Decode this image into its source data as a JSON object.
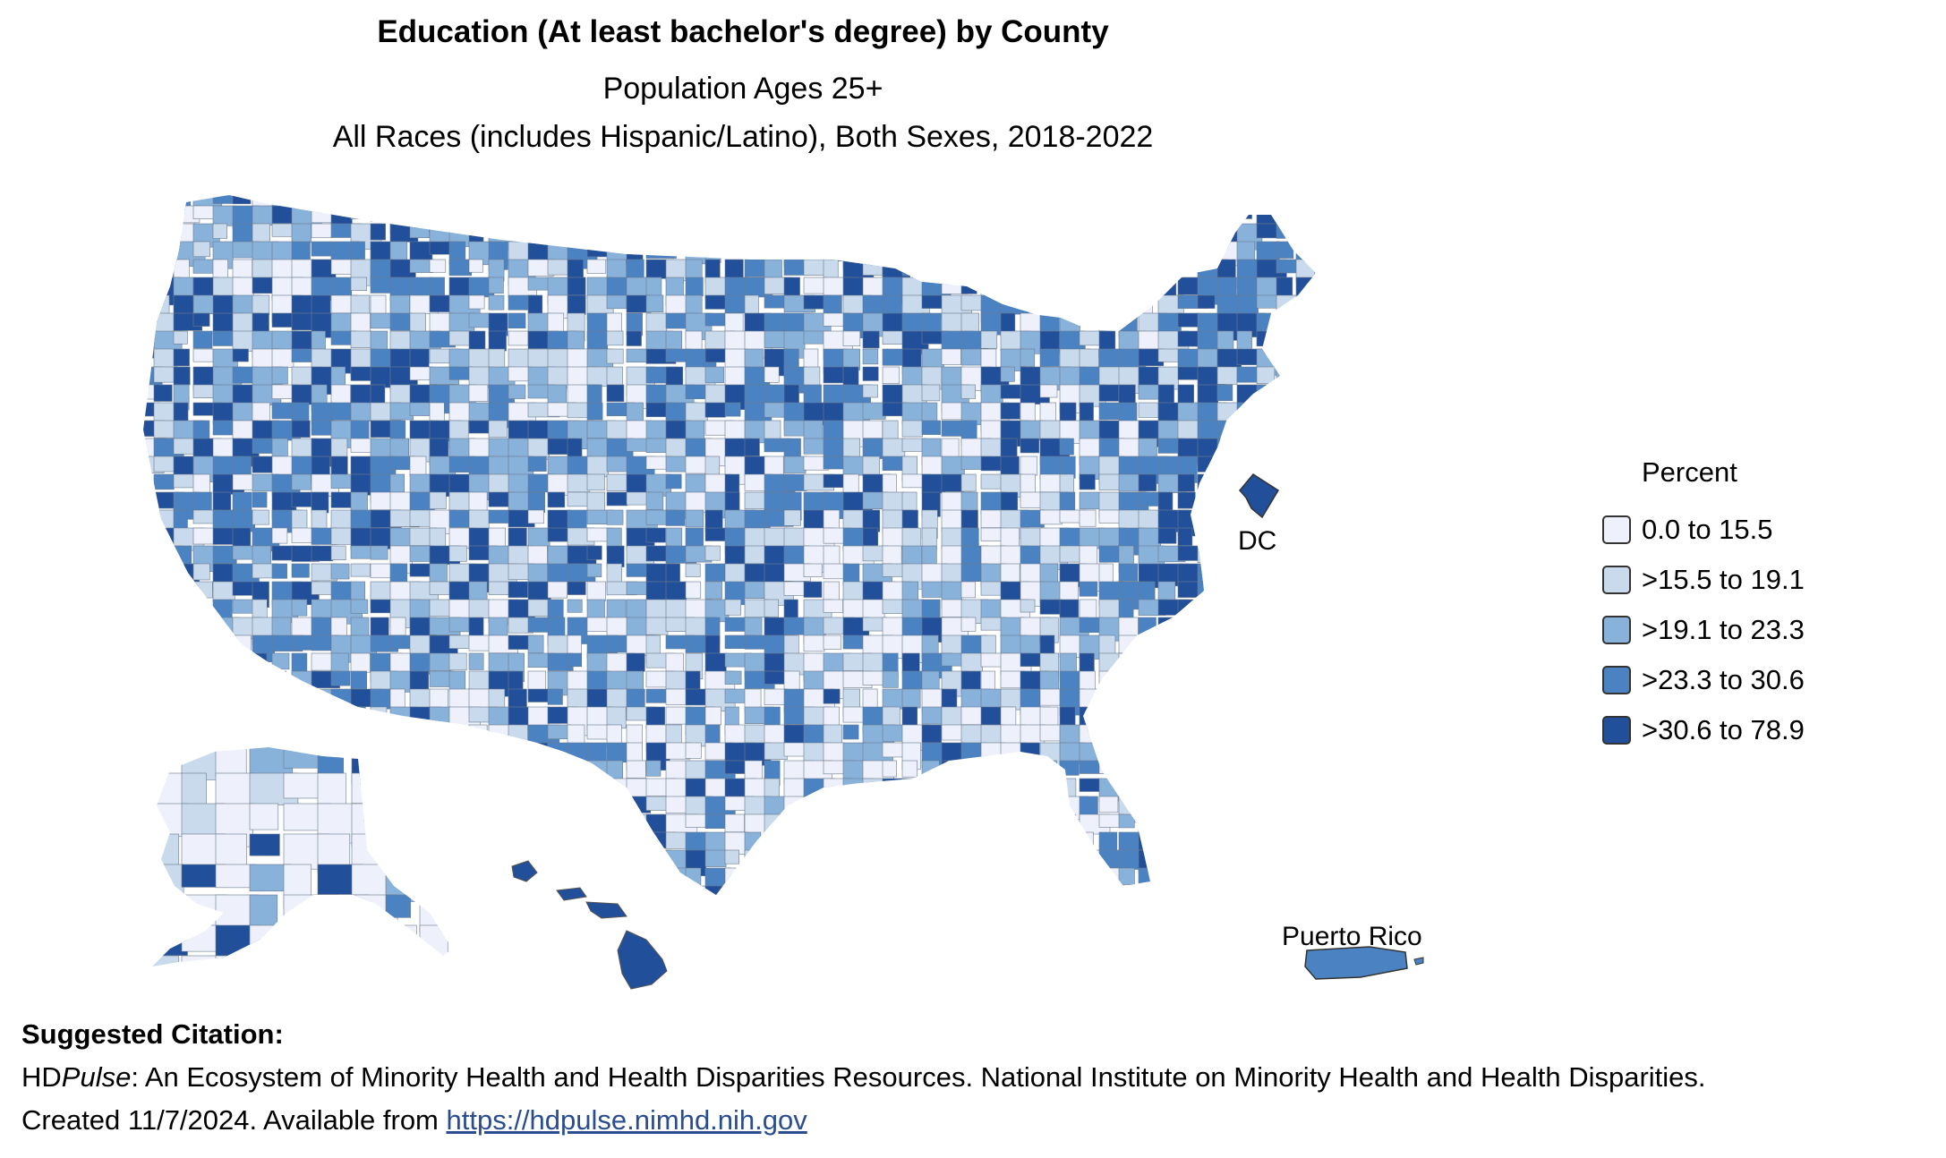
{
  "header": {
    "title": "Education (At least bachelor's degree) by County",
    "subtitle_line1": "Population Ages 25+",
    "subtitle_line2": "All Races (includes Hispanic/Latino), Both Sexes, 2018-2022"
  },
  "legend": {
    "title": "Percent",
    "items": [
      {
        "label": "0.0 to 15.5",
        "color": "#eef1fb"
      },
      {
        "label": ">15.5 to 19.1",
        "color": "#c8daeb"
      },
      {
        "label": ">19.1 to 23.3",
        "color": "#89b2db"
      },
      {
        "label": ">23.3 to 30.6",
        "color": "#4a82c2"
      },
      {
        "label": ">30.6 to 78.9",
        "color": "#224f99"
      }
    ]
  },
  "map_labels": {
    "dc": "DC",
    "puerto_rico": "Puerto Rico"
  },
  "map_regions": {
    "dc": {
      "color": "#224f99"
    },
    "puerto_rico": {
      "color": "#4a82c2"
    },
    "hawaii": {
      "color": "#224f99"
    },
    "alaska": {
      "color": "#eef1fb"
    }
  },
  "citation": {
    "heading": "Suggested Citation:",
    "brand_prefix": "HD",
    "brand_italic": "Pulse",
    "text": ": An Ecosystem of Minority Health and Health Disparities Resources. National Institute on Minority Health and Health Disparities.",
    "created": "Created 11/7/2024. Available from ",
    "link": "https://hdpulse.nimhd.nih.gov"
  }
}
